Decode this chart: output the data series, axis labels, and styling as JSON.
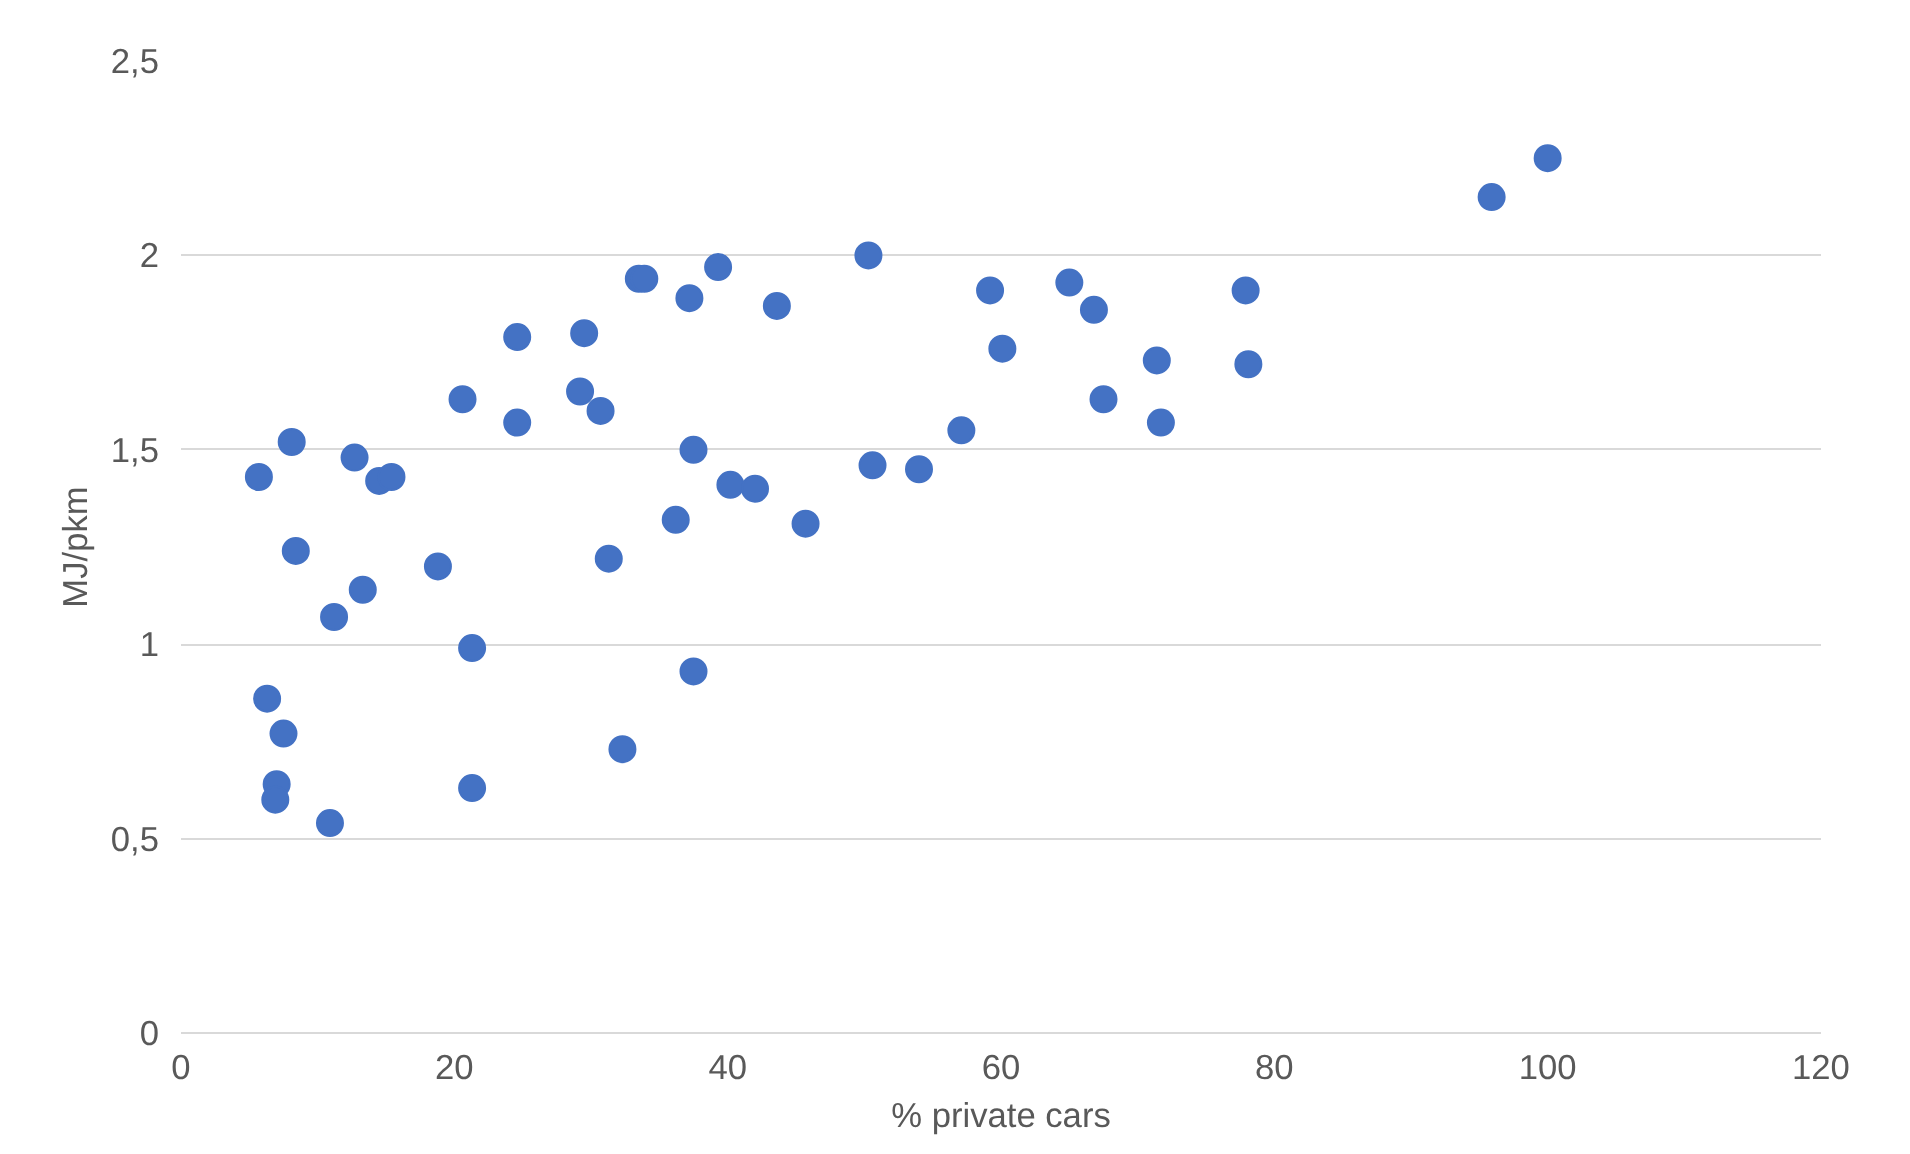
{
  "chart_data": {
    "type": "scatter",
    "xlabel": "% private cars",
    "ylabel": "MJ/pkm",
    "x": [
      5.7,
      6.3,
      7.0,
      6.9,
      7.5,
      8.1,
      8.4,
      10.9,
      11.2,
      12.7,
      13.3,
      14.5,
      15.4,
      18.8,
      20.6,
      21.3,
      21.3,
      24.6,
      24.6,
      29.2,
      29.5,
      30.7,
      31.3,
      32.3,
      33.5,
      33.9,
      36.2,
      37.2,
      37.5,
      37.5,
      39.3,
      40.2,
      42.0,
      43.6,
      45.7,
      50.3,
      50.6,
      54.0,
      57.1,
      59.2,
      60.1,
      65.0,
      66.8,
      67.5,
      71.4,
      71.7,
      77.9,
      78.1,
      95.9,
      100
    ],
    "series": [
      {
        "color": "#4472c4",
        "values": [
          1.43,
          0.86,
          0.64,
          0.6,
          0.77,
          1.52,
          1.24,
          0.54,
          1.07,
          1.48,
          1.14,
          1.42,
          1.43,
          1.2,
          1.63,
          0.99,
          0.63,
          1.79,
          1.57,
          1.65,
          1.8,
          1.6,
          1.22,
          0.73,
          1.94,
          1.94,
          1.32,
          1.89,
          1.5,
          0.93,
          1.97,
          1.41,
          1.4,
          1.87,
          1.31,
          2.0,
          1.46,
          1.45,
          1.55,
          1.91,
          1.76,
          1.93,
          1.86,
          1.63,
          1.73,
          1.57,
          1.91,
          1.72,
          2.15,
          2.25
        ]
      }
    ],
    "xlim": [
      0,
      120
    ],
    "xticks": [
      0,
      20,
      40,
      60,
      80,
      100,
      120
    ],
    "ylim": [
      0,
      2.5
    ],
    "yticks": [
      0,
      {
        "value": 0.5,
        "label": "0,5"
      },
      1,
      {
        "value": 1.5,
        "label": "1,5"
      },
      2,
      {
        "value": 2.5,
        "label": "2,5"
      }
    ],
    "grid": "y",
    "marker": "circle"
  }
}
